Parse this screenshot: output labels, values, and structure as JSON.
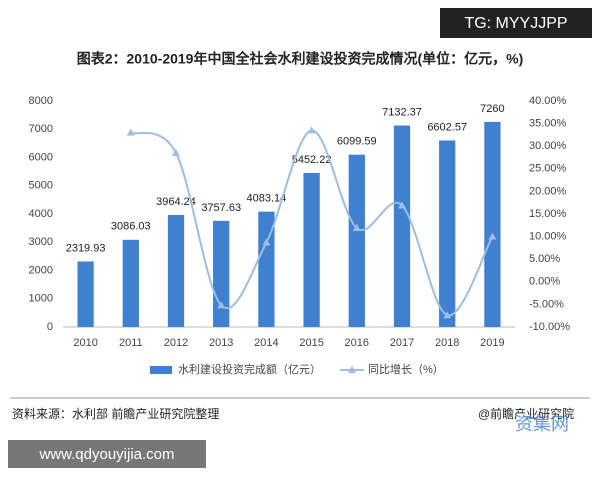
{
  "tag": "TG: MYYJJPP",
  "site_url": "www.qdyouyijia.com",
  "credit": "@前瞻产业研究院",
  "watermark": "资集网",
  "chart_data": {
    "type": "bar",
    "title": "图表2：2010-2019年中国全社会水利建设投资完成情况(单位：亿元，%)",
    "source": "资料来源：水利部 前瞻产业研究院整理",
    "categories": [
      "2010",
      "2011",
      "2012",
      "2013",
      "2014",
      "2015",
      "2016",
      "2017",
      "2018",
      "2019"
    ],
    "series": [
      {
        "name": "水利建设投资完成额（亿元）",
        "type": "bar",
        "color": "#3f80d0",
        "values": [
          2319.93,
          3086.03,
          3964.24,
          3757.63,
          4083.14,
          5452.22,
          6099.59,
          7132.37,
          6602.57,
          7260
        ]
      },
      {
        "name": "同比增长（%）",
        "type": "line",
        "axis": "y2",
        "color": "#9dbde3",
        "values": [
          null,
          33.0,
          28.5,
          -5.2,
          8.7,
          33.5,
          11.9,
          16.9,
          -7.4,
          10.0
        ]
      }
    ],
    "ylim": [
      0,
      8000
    ],
    "yticks": [
      0,
      1000,
      2000,
      3000,
      4000,
      5000,
      6000,
      7000,
      8000
    ],
    "y2lim": [
      -10,
      40
    ],
    "y2ticks": [
      {
        "value": -10,
        "label": "-10.00%"
      },
      {
        "value": -5,
        "label": "-5.00%"
      },
      {
        "value": 0,
        "label": "0.00%"
      },
      {
        "value": 5,
        "label": "5.00%"
      },
      {
        "value": 10,
        "label": "10.00%"
      },
      {
        "value": 15,
        "label": "15.00%"
      },
      {
        "value": 20,
        "label": "20.00%"
      },
      {
        "value": 25,
        "label": "25.00%"
      },
      {
        "value": 30,
        "label": "30.00%"
      },
      {
        "value": 35,
        "label": "35.00%"
      },
      {
        "value": 40,
        "label": "40.00%"
      }
    ],
    "grid": false
  }
}
